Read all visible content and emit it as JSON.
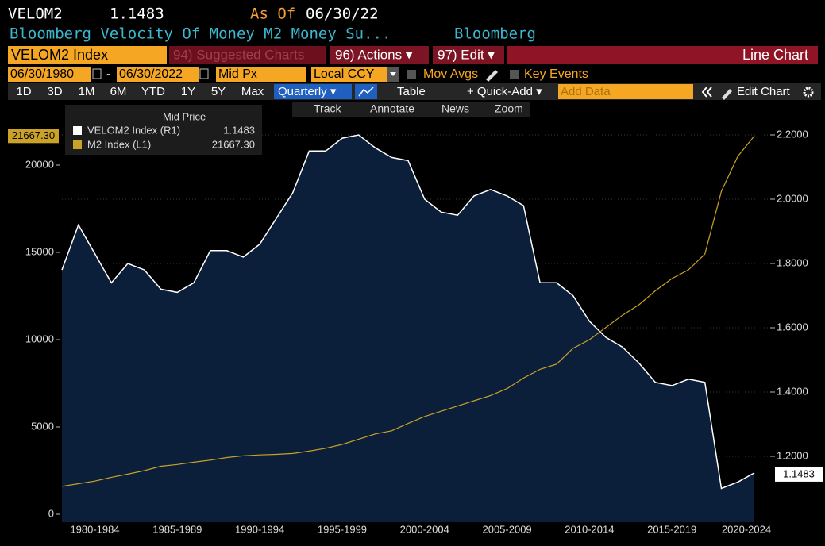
{
  "header": {
    "ticker": "VELOM2",
    "as_of_label": "As Of",
    "as_of_date": "06/30/22",
    "description": "Bloomberg Velocity Of Money M2 Money Su...",
    "source": "Bloomberg"
  },
  "menu": {
    "security": "VELOM2 Index",
    "suggested": "94) Suggested Charts",
    "actions": "96) Actions ▾",
    "edit": "97) Edit ▾",
    "chart_type_label": "Line Chart"
  },
  "settings": {
    "start_date": "06/30/1980",
    "date_separator": "-",
    "end_date": "06/30/2022",
    "field": "Mid Px",
    "currency": "Local CCY",
    "mov_avgs": "Mov Avgs",
    "key_events": "Key Events"
  },
  "toolbar": {
    "periods": [
      "1D",
      "3D",
      "1M",
      "6M",
      "YTD",
      "1Y",
      "5Y",
      "Max"
    ],
    "frequency": "Quarterly ▾",
    "table": "Table",
    "quick_add": "+ Quick-Add ▾",
    "add_data": "Add Data",
    "edit_chart": "Edit Chart"
  },
  "tools": [
    "Track",
    "Annotate",
    "News",
    "Zoom"
  ],
  "chart_data": {
    "type": "line",
    "legend_title": "Mid Price",
    "categories": [
      null,
      null,
      "1980-1984",
      null,
      null,
      null,
      null,
      "1985-1989",
      null,
      null,
      null,
      null,
      "1990-1994",
      null,
      null,
      null,
      null,
      "1995-1999",
      null,
      null,
      null,
      null,
      "2000-2004",
      null,
      null,
      null,
      null,
      "2005-2009",
      null,
      null,
      null,
      null,
      "2010-2014",
      null,
      null,
      null,
      null,
      "2015-2019",
      null,
      null,
      null,
      null,
      "2020-2024"
    ],
    "series": [
      {
        "name": "VELOM2 Index (R1)",
        "color": "#ffffff",
        "fill": "#0b1e3a",
        "axis": "y2",
        "values": [
          1.78,
          1.92,
          1.83,
          1.74,
          1.8,
          1.78,
          1.72,
          1.71,
          1.74,
          1.84,
          1.84,
          1.82,
          1.86,
          1.94,
          2.02,
          2.15,
          2.15,
          2.19,
          2.2,
          2.16,
          2.13,
          2.12,
          2.0,
          1.96,
          1.95,
          2.01,
          2.03,
          2.01,
          1.98,
          1.74,
          1.74,
          1.7,
          1.62,
          1.57,
          1.54,
          1.49,
          1.43,
          1.42,
          1.44,
          1.43,
          1.1,
          1.12,
          1.1483
        ]
      },
      {
        "name": "M2 Index (L1)",
        "color": "#c9a227",
        "values": [
          1600,
          1750,
          1900,
          2120,
          2300,
          2500,
          2750,
          2850,
          2980,
          3100,
          3250,
          3350,
          3400,
          3430,
          3480,
          3620,
          3780,
          4000,
          4300,
          4600,
          4780,
          5200,
          5600,
          5900,
          6200,
          6500,
          6800,
          7200,
          7800,
          8300,
          8600,
          9500,
          10000,
          10700,
          11400,
          12000,
          12800,
          13500,
          14000,
          14900,
          18500,
          20500,
          21667.3
        ],
        "value_labels": [
          null,
          null,
          null,
          null,
          null,
          null,
          null,
          null,
          null,
          null,
          null,
          null,
          null,
          null,
          null,
          null,
          null,
          null,
          null,
          null,
          null,
          null,
          null,
          null,
          null,
          null,
          null,
          null,
          null,
          null,
          null,
          null,
          null,
          null,
          null,
          null,
          null,
          null,
          null,
          null,
          null,
          null,
          "21667.30"
        ]
      }
    ],
    "ylim": [
      -455,
      22182
    ],
    "yticks": [
      0,
      5000,
      10000,
      15000,
      20000
    ],
    "y2lim": [
      0.995,
      2.2247
    ],
    "y2ticks": [
      {
        "value": 1.2,
        "label": "1.2000"
      },
      {
        "value": 1.4,
        "label": "1.4000"
      },
      {
        "value": 1.6,
        "label": "1.6000"
      },
      {
        "value": 1.8,
        "label": "1.8000"
      },
      {
        "value": 2.0,
        "label": "2.0000"
      },
      {
        "value": 2.2,
        "label": "2.2000"
      }
    ],
    "grid": true
  }
}
